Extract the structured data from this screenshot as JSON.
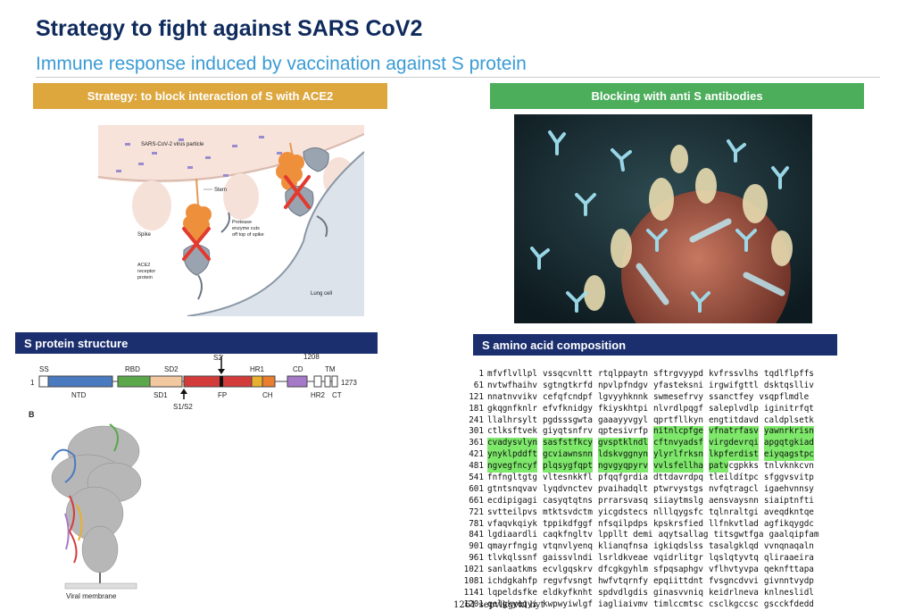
{
  "title": "Strategy to fight against SARS CoV2",
  "subtitle": "Immune response induced by vaccination against S protein",
  "left_header": "Strategy: to block interaction of S with ACE2",
  "right_header": "Blocking with anti S antibodies",
  "left_section": "S protein structure",
  "right_section": "S amino acid composition",
  "illustration": {
    "virus_label": "SARS-CoV-2 virus particle",
    "stem": "Stem",
    "spike": "Spike",
    "protease": [
      "Protease",
      "enzyme cuts",
      "off top of spike"
    ],
    "ace2": [
      "ACE2",
      "receptor",
      "protein"
    ],
    "lung_cell": "Lung cell"
  },
  "domain_map": {
    "start": "1",
    "end": "1273",
    "top_labels": [
      "SS",
      "RBD",
      "SD2",
      "S2'",
      "HR1",
      "CD",
      "1208",
      "TM"
    ],
    "bottom_labels": [
      "NTD",
      "SD1",
      "S1/S2",
      "FP",
      "CH",
      "HR2",
      "CT"
    ],
    "colors": {
      "ntd": "#4a7ac0",
      "rbd": "#5aa84a",
      "sd": "#f2c8a0",
      "s2": "#d33b3b",
      "hr1": "#e8b02e",
      "ch": "#e87e2e",
      "cd": "#a57ac8"
    }
  },
  "structure": {
    "panel_label": "B",
    "membrane": "Viral membrane"
  },
  "sequence": [
    {
      "n": "1",
      "cols": [
        "mfvflvllpl",
        "vssqcvnltt",
        "rtqlppaytn",
        "sftrgvyypd",
        "kvfrssvlhs",
        "tqdlflpffs"
      ],
      "hl": 0
    },
    {
      "n": "61",
      "cols": [
        "nvtwfhaihv",
        "sgtngtkrfd",
        "npvlpfndgv",
        "yfasteksni",
        "irgwifgttl",
        "dsktqslliv"
      ],
      "hl": 0
    },
    {
      "n": "121",
      "cols": [
        "nnatnvvikv",
        "cefqfcndpf",
        "lgvyyhknnk",
        "swmesefrvy",
        "ssanctfey",
        "vsqpflmdle"
      ],
      "hl": 0
    },
    {
      "n": "181",
      "cols": [
        "gkqgnfknlr",
        "efvfknidgy",
        "fkiyskhtpi",
        "nlvrdlpqgf",
        "saleplvdlp",
        "iginitrfqt"
      ],
      "hl": 0
    },
    {
      "n": "241",
      "cols": [
        "llalhrsylt",
        "pgdsssgwta",
        "gaaayyvgyl",
        "qprtfllkyn",
        "engtitdavd",
        "caldplsetk"
      ],
      "hl": 0
    },
    {
      "n": "301",
      "cols": [
        "ctlksftvek",
        "giyqtsnfrv",
        "qptesivrfp",
        "nitnlcpfge",
        "vfnatrfasv",
        "yawnrkrisn"
      ],
      "hl": 3
    },
    {
      "n": "361",
      "cols": [
        "cvadysvlyn",
        "sasfstfkcy",
        "gvsptklndl",
        "cftnvyadsf",
        "virgdevrqi",
        "apgqtgkiad"
      ],
      "hl": 6
    },
    {
      "n": "421",
      "cols": [
        "ynyklpddft",
        "gcviawnsnn",
        "ldskvggnyn",
        "ylyrlfrksn",
        "lkpferdist",
        "eiyqagstpc"
      ],
      "hl": 6
    },
    {
      "n": "481",
      "cols": [
        "ngvegfncyf",
        "plqsygfqpt",
        "ngvgyqpyrv",
        "vvlsfellha",
        "patvcgpkks",
        "tnlvknkcvn"
      ],
      "hl": 4.35
    },
    {
      "n": "541",
      "cols": [
        "fnfngltgtg",
        "vltesnkkfl",
        "pfqqfgrdia",
        "dttdavrdpq",
        "tleildítpc",
        "sfggvsvitp"
      ],
      "hl": 0
    },
    {
      "n": "601",
      "cols": [
        "gtntsnqvav",
        "lyqdvnctev",
        "pvaihadqlt",
        "ptwrvystgs",
        "nvfqtragcl",
        "igaehvnnsy"
      ],
      "hl": 0
    },
    {
      "n": "661",
      "cols": [
        "ecdipigagi",
        "casyqtqtns",
        "prrarsvasq",
        "siiaytmslg",
        "aensvaysnn",
        "siaiptnfti"
      ],
      "hl": 0
    },
    {
      "n": "721",
      "cols": [
        "svtteilpvs",
        "mtktsvdctm",
        "yicgdstecs",
        "nlllqygsfc",
        "tqlnraltgi",
        "aveqdkntqe"
      ],
      "hl": 0
    },
    {
      "n": "781",
      "cols": [
        "vfaqvkqiyk",
        "tppikdfggf",
        "nfsqilpdps",
        "kpskrsfied",
        "llfnkvtlad",
        "agfikqygdc"
      ],
      "hl": 0
    },
    {
      "n": "841",
      "cols": [
        "lgdiaardli",
        "caqkfngltv",
        "lppllt demi",
        "aqytsallag",
        "titsgwtfga",
        "gaalqipfam"
      ],
      "hl": 0
    },
    {
      "n": "901",
      "cols": [
        "qmayrfngig",
        "vtqnvlyenq",
        "klianqfnsa",
        "igkiqdslss",
        "tasalgklqd",
        "vvnqnaqaln"
      ],
      "hl": 0
    },
    {
      "n": "961",
      "cols": [
        "tlvkqlssnf",
        "gaissvlndi",
        "lsrldkveae",
        "vqidrlitgr",
        "lqslqtyvtq",
        "qliraaeira"
      ],
      "hl": 0
    },
    {
      "n": "1021",
      "cols": [
        "sanlaatkms",
        "ecvlgqskrv",
        "dfcgkgyhlm",
        "sfpqsaphgv",
        "vflhvtyvpa",
        "qeknfttapa"
      ],
      "hl": 0
    },
    {
      "n": "1081",
      "cols": [
        "ichdgkahfp",
        "regvfvsngt",
        "hwfvtqrnfy",
        "epqiittdnt",
        "fvsgncdvvi",
        "givnntvydp"
      ],
      "hl": 0
    },
    {
      "n": "1141",
      "cols": [
        "lqpeldsfke",
        "eldkyfknht",
        "spdvdlgdis",
        "ginasvvniq",
        "keidrlneva",
        "knlneslidl"
      ],
      "hl": 0
    },
    {
      "n": "1201",
      "cols": [
        "qelgkyeqyi",
        "kwpwyiwlgf",
        "iagliaivmv",
        "timlccmtsc",
        "csclkgccsc",
        "gscckfdedd"
      ],
      "hl": 0
    }
  ],
  "sequence_tail": "1261 sepvlkgvkl hyt"
}
